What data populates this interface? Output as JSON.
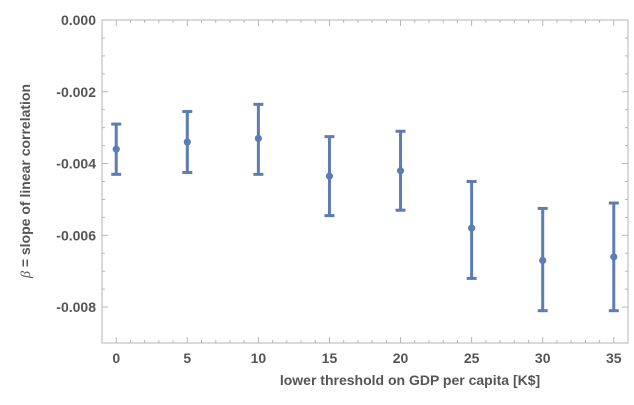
{
  "chart_data": {
    "type": "scatter",
    "xlabel": "lower threshold on GDP per capita [K$]",
    "ylabel_symbol": "β",
    "ylabel_rest": " = slope of linear correlation",
    "xlim": [
      -1,
      36
    ],
    "ylim": [
      -0.009,
      0.0
    ],
    "x_ticks": [
      0,
      5,
      10,
      15,
      20,
      25,
      30,
      35
    ],
    "x_tick_labels": [
      "0",
      "5",
      "10",
      "15",
      "20",
      "25",
      "30",
      "35"
    ],
    "y_ticks": [
      0.0,
      -0.002,
      -0.004,
      -0.006,
      -0.008
    ],
    "y_tick_labels": [
      "0.000",
      "-0.002",
      "-0.004",
      "-0.006",
      "-0.008"
    ],
    "grid": false,
    "error_bars": true,
    "color": "#5b7cb5",
    "points": [
      {
        "x": 0,
        "y": -0.0036,
        "lower": -0.0043,
        "upper": -0.0029
      },
      {
        "x": 5,
        "y": -0.0034,
        "lower": -0.00425,
        "upper": -0.00255
      },
      {
        "x": 10,
        "y": -0.0033,
        "lower": -0.0043,
        "upper": -0.00235
      },
      {
        "x": 15,
        "y": -0.00435,
        "lower": -0.00545,
        "upper": -0.00325
      },
      {
        "x": 20,
        "y": -0.0042,
        "lower": -0.0053,
        "upper": -0.0031
      },
      {
        "x": 25,
        "y": -0.0058,
        "lower": -0.0072,
        "upper": -0.0045
      },
      {
        "x": 30,
        "y": -0.0067,
        "lower": -0.0081,
        "upper": -0.00525
      },
      {
        "x": 35,
        "y": -0.0066,
        "lower": -0.0081,
        "upper": -0.0051
      }
    ]
  }
}
